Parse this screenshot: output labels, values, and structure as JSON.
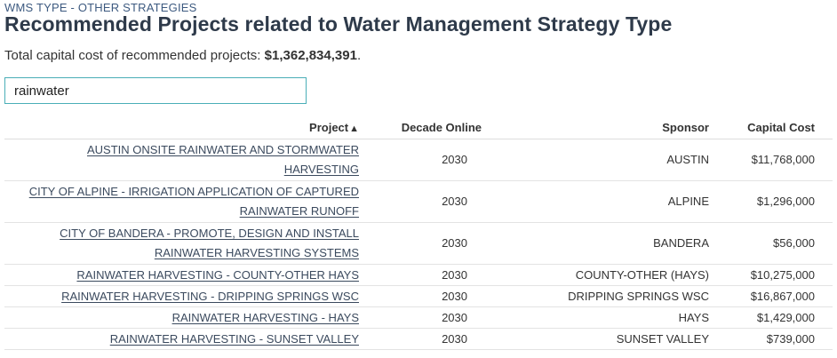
{
  "breadcrumb": "WMS TYPE - OTHER STRATEGIES",
  "page_title": "Recommended Projects related to Water Management Strategy Type",
  "total": {
    "label": "Total capital cost of recommended projects:",
    "value": "$1,362,834,391",
    "suffix": "."
  },
  "search": {
    "value": "rainwater",
    "placeholder": ""
  },
  "table": {
    "columns": {
      "project": "Project",
      "project_sort_icon": "▲",
      "decade": "Decade Online",
      "sponsor": "Sponsor",
      "cost": "Capital Cost"
    },
    "rows": [
      {
        "project": "AUSTIN ONSITE RAINWATER AND STORMWATER HARVESTING",
        "decade": "2030",
        "sponsor": "AUSTIN",
        "cost": "$11,768,000"
      },
      {
        "project": "CITY OF ALPINE - IRRIGATION APPLICATION OF CAPTURED RAINWATER RUNOFF",
        "decade": "2030",
        "sponsor": "ALPINE",
        "cost": "$1,296,000"
      },
      {
        "project": "CITY OF BANDERA - PROMOTE, DESIGN AND INSTALL RAINWATER HARVESTING SYSTEMS",
        "decade": "2030",
        "sponsor": "BANDERA",
        "cost": "$56,000"
      },
      {
        "project": "RAINWATER HARVESTING - COUNTY-OTHER HAYS",
        "decade": "2030",
        "sponsor": "COUNTY-OTHER (HAYS)",
        "cost": "$10,275,000"
      },
      {
        "project": "RAINWATER HARVESTING - DRIPPING SPRINGS WSC",
        "decade": "2030",
        "sponsor": "DRIPPING SPRINGS WSC",
        "cost": "$16,867,000"
      },
      {
        "project": "RAINWATER HARVESTING - HAYS",
        "decade": "2030",
        "sponsor": "HAYS",
        "cost": "$1,429,000"
      },
      {
        "project": "RAINWATER HARVESTING - SUNSET VALLEY",
        "decade": "2030",
        "sponsor": "SUNSET VALLEY",
        "cost": "$739,000"
      }
    ]
  }
}
